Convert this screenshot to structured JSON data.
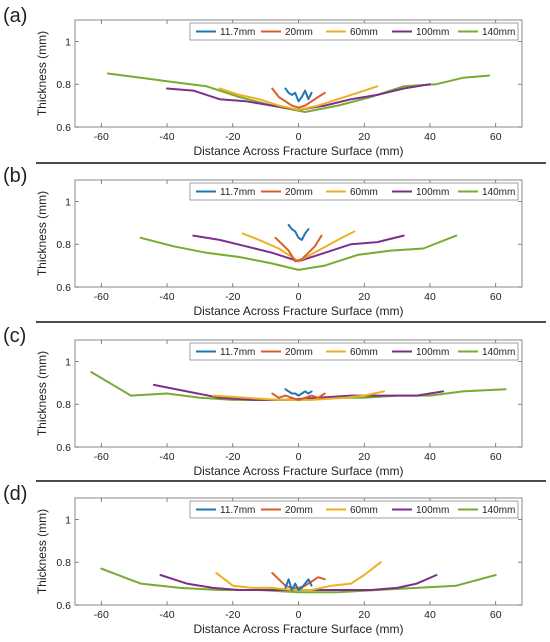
{
  "figure": {
    "colors": {
      "11.7mm": "#1f77b4",
      "20mm": "#d95f27",
      "60mm": "#edb120",
      "100mm": "#7e2f8e",
      "140mm": "#77ac30"
    }
  },
  "chart_data": [
    {
      "panel": "(a)",
      "type": "line",
      "xlabel": "Distance Across Fracture Surface (mm)",
      "ylabel": "Thickness (mm)",
      "xlim": [
        -68,
        68
      ],
      "ylim": [
        0.6,
        1.1
      ],
      "xticks": [
        -60,
        -40,
        -20,
        0,
        20,
        40,
        60
      ],
      "yticks": [
        0.6,
        0.8,
        1
      ],
      "legend": "top-right",
      "grid": false,
      "series": [
        {
          "name": "11.7mm",
          "x": [
            -4,
            -3,
            -2,
            -1,
            0,
            1,
            2,
            3,
            4
          ],
          "y": [
            0.78,
            0.76,
            0.75,
            0.76,
            0.72,
            0.74,
            0.77,
            0.73,
            0.76
          ]
        },
        {
          "name": "20mm",
          "x": [
            -8,
            -6,
            -4,
            -2,
            0,
            2,
            4,
            6,
            8
          ],
          "y": [
            0.78,
            0.74,
            0.72,
            0.7,
            0.69,
            0.7,
            0.72,
            0.74,
            0.76
          ]
        },
        {
          "name": "60mm",
          "x": [
            -24,
            -18,
            -12,
            -6,
            0,
            6,
            12,
            18,
            24
          ],
          "y": [
            0.78,
            0.75,
            0.73,
            0.7,
            0.68,
            0.7,
            0.73,
            0.76,
            0.79
          ]
        },
        {
          "name": "100mm",
          "x": [
            -40,
            -32,
            -24,
            -16,
            -8,
            0,
            8,
            16,
            24,
            32,
            40
          ],
          "y": [
            0.78,
            0.77,
            0.73,
            0.72,
            0.7,
            0.68,
            0.7,
            0.73,
            0.75,
            0.78,
            0.8
          ]
        },
        {
          "name": "140mm",
          "x": [
            -58,
            -48,
            -38,
            -28,
            -18,
            -8,
            2,
            12,
            22,
            32,
            42,
            50,
            58
          ],
          "y": [
            0.85,
            0.83,
            0.81,
            0.79,
            0.74,
            0.7,
            0.67,
            0.7,
            0.74,
            0.79,
            0.8,
            0.83,
            0.84
          ]
        }
      ]
    },
    {
      "panel": "(b)",
      "type": "line",
      "xlabel": "Distance Across Fracture Surface (mm)",
      "ylabel": "Thickness (mm)",
      "xlim": [
        -68,
        68
      ],
      "ylim": [
        0.6,
        1.1
      ],
      "xticks": [
        -60,
        -40,
        -20,
        0,
        20,
        40,
        60
      ],
      "yticks": [
        0.6,
        0.8,
        1
      ],
      "legend": "top-right",
      "grid": false,
      "series": [
        {
          "name": "11.7mm",
          "x": [
            -3,
            -2,
            -1,
            0,
            1,
            2,
            3
          ],
          "y": [
            0.89,
            0.87,
            0.86,
            0.83,
            0.82,
            0.85,
            0.87
          ]
        },
        {
          "name": "20mm",
          "x": [
            -7,
            -5,
            -3,
            -1,
            1,
            3,
            5,
            7
          ],
          "y": [
            0.83,
            0.8,
            0.77,
            0.72,
            0.73,
            0.76,
            0.79,
            0.84
          ]
        },
        {
          "name": "60mm",
          "x": [
            -17,
            -12,
            -6,
            0,
            6,
            12,
            17
          ],
          "y": [
            0.85,
            0.82,
            0.78,
            0.72,
            0.77,
            0.82,
            0.86
          ]
        },
        {
          "name": "100mm",
          "x": [
            -32,
            -24,
            -16,
            -8,
            0,
            8,
            16,
            24,
            32
          ],
          "y": [
            0.84,
            0.82,
            0.79,
            0.76,
            0.72,
            0.76,
            0.8,
            0.81,
            0.84
          ]
        },
        {
          "name": "140mm",
          "x": [
            -48,
            -38,
            -28,
            -18,
            -8,
            0,
            8,
            18,
            28,
            38,
            48
          ],
          "y": [
            0.83,
            0.79,
            0.76,
            0.74,
            0.71,
            0.68,
            0.7,
            0.75,
            0.77,
            0.78,
            0.84
          ]
        }
      ]
    },
    {
      "panel": "(c)",
      "type": "line",
      "xlabel": "Distance Across Fracture Surface (mm)",
      "ylabel": "Thickness (mm)",
      "xlim": [
        -68,
        68
      ],
      "ylim": [
        0.6,
        1.1
      ],
      "xticks": [
        -60,
        -40,
        -20,
        0,
        20,
        40,
        60
      ],
      "yticks": [
        0.6,
        0.8,
        1
      ],
      "legend": "top-right",
      "grid": false,
      "series": [
        {
          "name": "11.7mm",
          "x": [
            -4,
            -3,
            -2,
            -1,
            0,
            1,
            2,
            3,
            4
          ],
          "y": [
            0.87,
            0.86,
            0.85,
            0.85,
            0.84,
            0.85,
            0.86,
            0.85,
            0.86
          ]
        },
        {
          "name": "20mm",
          "x": [
            -8,
            -6,
            -4,
            -2,
            0,
            2,
            4,
            6,
            8
          ],
          "y": [
            0.85,
            0.83,
            0.84,
            0.83,
            0.82,
            0.83,
            0.84,
            0.83,
            0.85
          ]
        },
        {
          "name": "60mm",
          "x": [
            -26,
            -16,
            -6,
            4,
            14,
            20,
            26
          ],
          "y": [
            0.84,
            0.83,
            0.82,
            0.82,
            0.83,
            0.84,
            0.86
          ]
        },
        {
          "name": "100mm",
          "x": [
            -44,
            -34,
            -24,
            -14,
            -4,
            6,
            16,
            26,
            36,
            44
          ],
          "y": [
            0.89,
            0.86,
            0.83,
            0.82,
            0.82,
            0.83,
            0.84,
            0.84,
            0.84,
            0.86
          ]
        },
        {
          "name": "140mm",
          "x": [
            -63,
            -51,
            -40,
            -30,
            -20,
            -10,
            0,
            10,
            20,
            30,
            40,
            50,
            63
          ],
          "y": [
            0.95,
            0.84,
            0.85,
            0.83,
            0.82,
            0.82,
            0.82,
            0.83,
            0.83,
            0.84,
            0.84,
            0.86,
            0.87
          ]
        }
      ]
    },
    {
      "panel": "(d)",
      "type": "line",
      "xlabel": "Distance Across Fracture Surface (mm)",
      "ylabel": "Thickness (mm)",
      "xlim": [
        -68,
        68
      ],
      "ylim": [
        0.6,
        1.1
      ],
      "xticks": [
        -60,
        -40,
        -20,
        0,
        20,
        40,
        60
      ],
      "yticks": [
        0.6,
        0.8,
        1
      ],
      "legend": "top-right",
      "grid": false,
      "series": [
        {
          "name": "11.7mm",
          "x": [
            -4,
            -3,
            -2,
            -1,
            0,
            1,
            2,
            3,
            4
          ],
          "y": [
            0.68,
            0.72,
            0.67,
            0.7,
            0.67,
            0.68,
            0.7,
            0.72,
            0.69
          ]
        },
        {
          "name": "20mm",
          "x": [
            -8,
            -6,
            -4,
            -2,
            0,
            2,
            4,
            6,
            8
          ],
          "y": [
            0.75,
            0.72,
            0.69,
            0.68,
            0.68,
            0.69,
            0.71,
            0.73,
            0.72
          ]
        },
        {
          "name": "60mm",
          "x": [
            -25,
            -20,
            -14,
            -8,
            -2,
            4,
            10,
            16,
            20,
            25
          ],
          "y": [
            0.75,
            0.69,
            0.68,
            0.68,
            0.67,
            0.67,
            0.69,
            0.7,
            0.74,
            0.8
          ]
        },
        {
          "name": "100mm",
          "x": [
            -42,
            -34,
            -26,
            -18,
            -10,
            -2,
            6,
            14,
            22,
            30,
            36,
            42
          ],
          "y": [
            0.74,
            0.7,
            0.68,
            0.67,
            0.67,
            0.67,
            0.67,
            0.67,
            0.67,
            0.68,
            0.7,
            0.74
          ]
        },
        {
          "name": "140mm",
          "x": [
            -60,
            -48,
            -36,
            -24,
            -12,
            0,
            12,
            24,
            36,
            48,
            60
          ],
          "y": [
            0.77,
            0.7,
            0.68,
            0.67,
            0.67,
            0.66,
            0.66,
            0.67,
            0.68,
            0.69,
            0.74
          ]
        }
      ]
    }
  ]
}
